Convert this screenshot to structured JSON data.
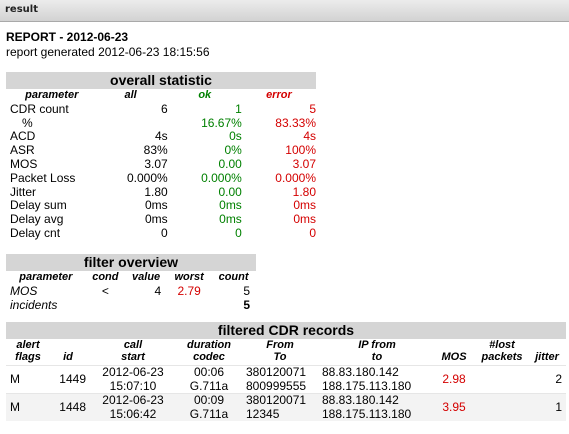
{
  "window": {
    "title": "result"
  },
  "report": {
    "title": "REPORT - 2012-06-23",
    "generated": "report generated 2012-06-23 18:15:56"
  },
  "overall": {
    "heading": "overall statistic",
    "columns": [
      "parameter",
      "all",
      "ok",
      "error"
    ],
    "rows": [
      {
        "parameter": "CDR count",
        "all": "6",
        "ok": "1",
        "error": "5"
      },
      {
        "parameter": "%",
        "all": "",
        "ok": "16.67%",
        "error": "83.33%"
      },
      {
        "parameter": "ACD",
        "all": "4s",
        "ok": "0s",
        "error": "4s"
      },
      {
        "parameter": "ASR",
        "all": "83%",
        "ok": "0%",
        "error": "100%"
      },
      {
        "parameter": "MOS",
        "all": "3.07",
        "ok": "0.00",
        "error": "3.07"
      },
      {
        "parameter": "Packet Loss",
        "all": "0.000%",
        "ok": "0.000%",
        "error": "0.000%"
      },
      {
        "parameter": "Jitter",
        "all": "1.80",
        "ok": "0.00",
        "error": "1.80"
      },
      {
        "parameter": "Delay sum",
        "all": "0ms",
        "ok": "0ms",
        "error": "0ms"
      },
      {
        "parameter": "Delay avg",
        "all": "0ms",
        "ok": "0ms",
        "error": "0ms"
      },
      {
        "parameter": "Delay cnt",
        "all": "0",
        "ok": "0",
        "error": "0"
      }
    ]
  },
  "filter": {
    "heading": "filter overview",
    "columns": [
      "parameter",
      "cond",
      "value",
      "worst",
      "count"
    ],
    "row": {
      "parameter": "MOS",
      "cond": "<",
      "value": "4",
      "worst": "2.79",
      "count": "5"
    },
    "incidents_label": "incidents",
    "incidents_value": "5"
  },
  "cdr": {
    "heading": "filtered CDR records",
    "columns": [
      {
        "l1": "alert",
        "l2": "flags"
      },
      {
        "l1": "",
        "l2": "id"
      },
      {
        "l1": "call",
        "l2": "start"
      },
      {
        "l1": "duration",
        "l2": "codec"
      },
      {
        "l1": "From",
        "l2": "To"
      },
      {
        "l1": "IP from",
        "l2": "to"
      },
      {
        "l1": "",
        "l2": "MOS"
      },
      {
        "l1": "#lost",
        "l2": "packets"
      },
      {
        "l1": "",
        "l2": "jitter"
      }
    ],
    "rows": [
      {
        "flags": "M",
        "id": "1449",
        "date": "2012-06-23",
        "time": "15:07:10",
        "duration": "00:06",
        "codec": "G.711a",
        "from": "380120071",
        "to": "800999555",
        "ip_from": "88.83.180.142",
        "ip_to": "188.175.113.180",
        "mos": "2.98",
        "lost": "",
        "jitter": "2"
      },
      {
        "flags": "M",
        "id": "1448",
        "date": "2012-06-23",
        "time": "15:06:42",
        "duration": "00:09",
        "codec": "G.711a",
        "from": "380120071",
        "to": "12345",
        "ip_from": "88.83.180.142",
        "ip_to": "188.175.113.180",
        "mos": "3.95",
        "lost": "",
        "jitter": "1"
      }
    ]
  },
  "colors": {
    "ok": "#008000",
    "error": "#d40000",
    "section_bar": "#d5d5d5"
  }
}
